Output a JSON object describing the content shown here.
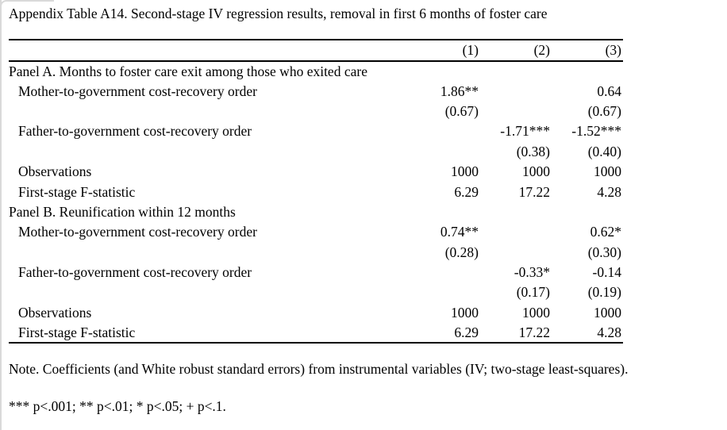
{
  "page": {
    "title": "Appendix Table A14. Second-stage IV regression results, removal in first 6 months of foster care"
  },
  "table": {
    "columns": [
      "(1)",
      "(2)",
      "(3)"
    ],
    "rows": [
      {
        "type": "panel",
        "label": "Panel A. Months to foster care exit among those who exited care",
        "values": [
          "",
          "",
          ""
        ]
      },
      {
        "type": "var",
        "label": "Mother-to-government cost-recovery order",
        "values": [
          "1.86**",
          "",
          "0.64"
        ]
      },
      {
        "type": "se",
        "label": "",
        "values": [
          "(0.67)",
          "",
          "(0.67)"
        ]
      },
      {
        "type": "var",
        "label": "Father-to-government cost-recovery order",
        "values": [
          "",
          "-1.71***",
          "-1.52***"
        ]
      },
      {
        "type": "se",
        "label": "",
        "values": [
          "",
          "(0.38)",
          "(0.40)"
        ]
      },
      {
        "type": "stat",
        "label": "Observations",
        "values": [
          "1000",
          "1000",
          "1000"
        ]
      },
      {
        "type": "stat",
        "label": "First-stage F-statistic",
        "values": [
          "6.29",
          "17.22",
          "4.28"
        ]
      },
      {
        "type": "panel",
        "label": "Panel B. Reunification within 12 months",
        "values": [
          "",
          "",
          ""
        ]
      },
      {
        "type": "var",
        "label": "Mother-to-government cost-recovery order",
        "values": [
          "0.74**",
          "",
          "0.62*"
        ]
      },
      {
        "type": "se",
        "label": "",
        "values": [
          "(0.28)",
          "",
          "(0.30)"
        ]
      },
      {
        "type": "var",
        "label": "Father-to-government cost-recovery order",
        "values": [
          "",
          "-0.33*",
          "-0.14"
        ]
      },
      {
        "type": "se",
        "label": "",
        "values": [
          "",
          "(0.17)",
          "(0.19)"
        ]
      },
      {
        "type": "stat",
        "label": "Observations",
        "values": [
          "1000",
          "1000",
          "1000"
        ]
      },
      {
        "type": "stat",
        "label": "First-stage F-statistic",
        "values": [
          "6.29",
          "17.22",
          "4.28"
        ]
      }
    ]
  },
  "notes": {
    "note": "Note. Coefficients (and White robust standard errors) from instrumental variables (IV; two-stage least-squares).",
    "significance": "*** p<.001; ** p<.01; * p<.05; + p<.1."
  }
}
